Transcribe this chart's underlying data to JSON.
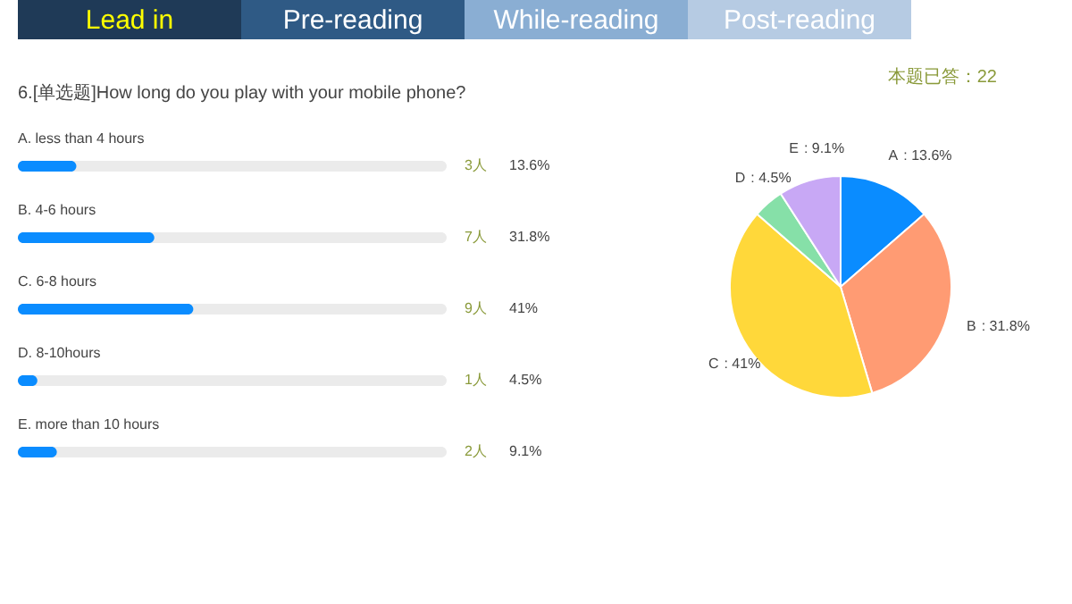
{
  "chart_data": [
    {
      "type": "bar",
      "orientation": "horizontal",
      "title": "6.[单选题]How long do you play with your mobile phone?",
      "categories": [
        "A. less than 4 hours",
        "B. 4-6 hours",
        "C. 6-8 hours",
        "D. 8-10hours",
        "E. more than 10 hours"
      ],
      "values": [
        3,
        7,
        9,
        1,
        2
      ],
      "value_labels": [
        "3人",
        "7人",
        "9人",
        "1人",
        "2人"
      ],
      "color": "#0a8cff",
      "xlim": [
        0,
        22
      ],
      "tick_labels": false,
      "annotations": [
        "Lead in",
        "Pre-reading",
        "While-reading",
        "Post-reading",
        "13.6%",
        "31.8%",
        "41%",
        "4.5%",
        "9.1%"
      ]
    },
    {
      "type": "pie",
      "categories": [
        "A",
        "B",
        "C",
        "D",
        "E"
      ],
      "values": [
        13.6,
        31.8,
        41,
        4.5,
        9.1
      ],
      "colors": [
        "#0a8cff",
        "#ff9b73",
        "#ffd83a",
        "#86e0a8",
        "#c8a8f5"
      ],
      "value_labels": [
        ": 13.6%",
        ": 31.8%",
        ": 41%",
        ": 4.5%",
        ": 9.1%"
      ],
      "annotations": [
        "本题已答：22"
      ]
    }
  ]
}
